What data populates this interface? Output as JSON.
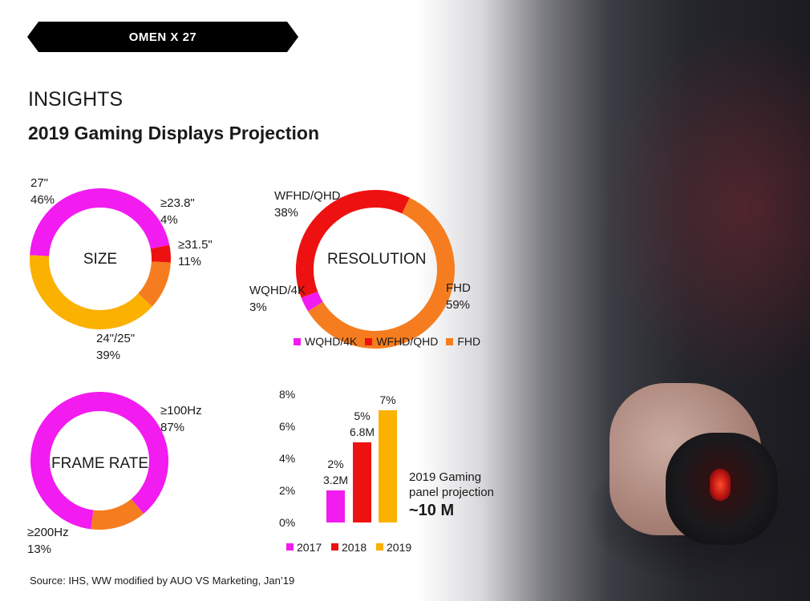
{
  "banner": {
    "title": "OMEN X 27"
  },
  "heading": {
    "section": "INSIGHTS",
    "title": "2019 Gaming Displays Projection"
  },
  "colors": {
    "magenta": "#f21bf0",
    "red": "#ee1111",
    "orange": "#f57d1f",
    "yellow": "#fbb100"
  },
  "chart_data": [
    {
      "type": "pie",
      "center_label": "SIZE",
      "slices": [
        {
          "label": "27\"",
          "value": 46,
          "pct_text": "46%",
          "color": "#f21bf0"
        },
        {
          "label": "≥23.8\"",
          "value": 4,
          "pct_text": "4%",
          "color": "#ee1111"
        },
        {
          "label": "≥31.5\"",
          "value": 11,
          "pct_text": "11%",
          "color": "#f57d1f"
        },
        {
          "label": "24\"/25\"",
          "value": 39,
          "pct_text": "39%",
          "color": "#fbb100"
        }
      ]
    },
    {
      "type": "pie",
      "center_label": "RESOLUTION",
      "slices": [
        {
          "label": "WQHD/4K",
          "value": 3,
          "pct_text": "3%",
          "color": "#f21bf0"
        },
        {
          "label": "WFHD/QHD",
          "value": 38,
          "pct_text": "38%",
          "color": "#ee1111"
        },
        {
          "label": "FHD",
          "value": 59,
          "pct_text": "59%",
          "color": "#f57d1f"
        }
      ],
      "legend": [
        "WQHD/4K",
        "WFHD/QHD",
        "FHD"
      ]
    },
    {
      "type": "pie",
      "center_label": "FRAME RATE",
      "slices": [
        {
          "label": "≥100Hz",
          "value": 87,
          "pct_text": "87%",
          "color": "#f21bf0"
        },
        {
          "label": "≥200Hz",
          "value": 13,
          "pct_text": "13%",
          "color": "#f57d1f"
        }
      ]
    },
    {
      "type": "bar",
      "categories": [
        "2017",
        "2018",
        "2019"
      ],
      "values": [
        2,
        5,
        7
      ],
      "data_labels": [
        [
          "2%",
          "3.2M"
        ],
        [
          "5%",
          "6.8M"
        ],
        [
          "7%"
        ]
      ],
      "colors": [
        "#f21bf0",
        "#ee1111",
        "#fbb100"
      ],
      "yticks": [
        "0%",
        "2%",
        "4%",
        "6%",
        "8%"
      ],
      "ylim": [
        0,
        8
      ],
      "legend": [
        "2017",
        "2018",
        "2019"
      ]
    }
  ],
  "projection": {
    "label_line1": "2019 Gaming",
    "label_line2": "panel projection",
    "value": "~10 M"
  },
  "source": "Source: IHS, WW modified by AUO VS Marketing, Jan’19"
}
